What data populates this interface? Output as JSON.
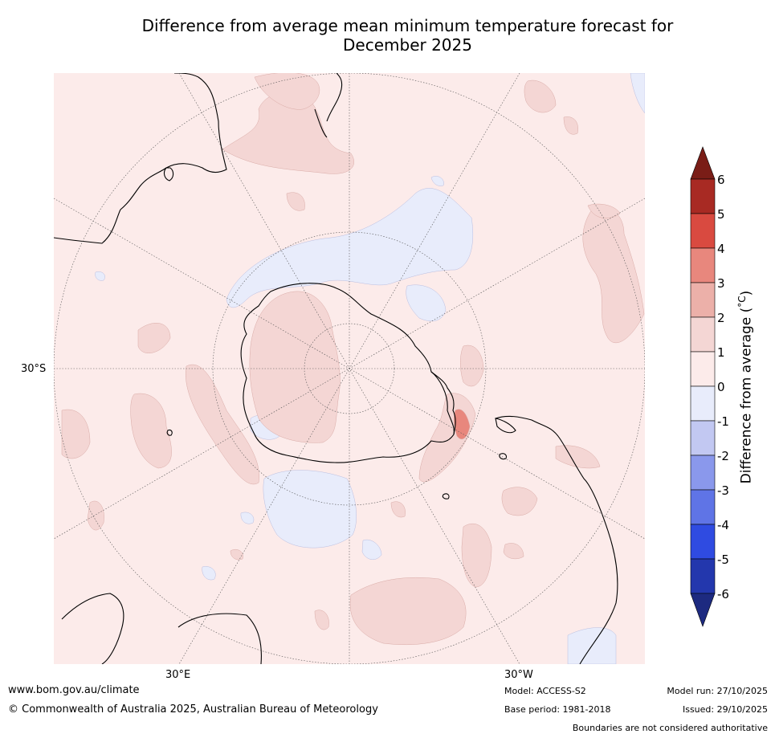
{
  "title": {
    "line1": "Difference from average mean minimum temperature forecast for",
    "line2": "December 2025"
  },
  "map": {
    "projection": "South polar stereographic",
    "lat_label": "30°S",
    "lon_labels": {
      "east": "30°E",
      "west": "30°W"
    }
  },
  "colorbar": {
    "label": "Difference from average (°C)",
    "label_main": "Difference from average (",
    "label_unit": "°C",
    "label_end": ")",
    "ticks": [
      "6",
      "5",
      "4",
      "3",
      "2",
      "1",
      "0",
      "-1",
      "-2",
      "-3",
      "-4",
      "-5",
      "-6"
    ],
    "colors": {
      "above_6": "#7a1d17",
      "5_6": "#a82a23",
      "4_5": "#d94a40",
      "3_4": "#e8877d",
      "2_3": "#ecb0a9",
      "1_2": "#f4d6d4",
      "0_1": "#fcebea",
      "m1_0": "#e8ecfb",
      "m2_m1": "#c2c8f2",
      "m3_m2": "#8a98ec",
      "m4_m3": "#5f74e6",
      "m5_m4": "#2f4be1",
      "m6_m5": "#2337ad",
      "below_m6": "#1d2a80"
    }
  },
  "footer": {
    "website": "www.bom.gov.au/climate",
    "copyright": "© Commonwealth of Australia 2025, Australian Bureau of Meteorology",
    "model": "Model: ACCESS-S2",
    "base_period": "Base period: 1981-2018",
    "model_run": "Model run: 27/10/2025",
    "issued": "Issued: 29/10/2025",
    "disclaimer": "Boundaries are not considered authoritative"
  }
}
